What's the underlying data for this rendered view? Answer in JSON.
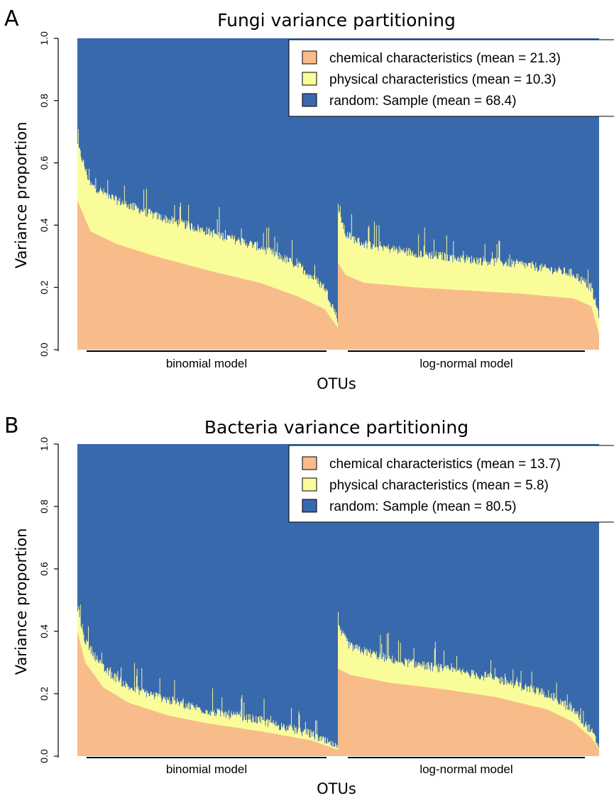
{
  "colors": {
    "chemical": "#f8bc8a",
    "physical": "#fafc9a",
    "random": "#3969ad"
  },
  "chart_data": [
    {
      "type": "bar",
      "panel": "A",
      "title": "Fungi variance partitioning",
      "xlabel": "OTUs",
      "ylabel": "Variance proportion",
      "ylim": [
        0,
        1
      ],
      "yticks": [
        "0.0",
        "0.2",
        "0.4",
        "0.6",
        "0.8",
        "1.0"
      ],
      "legend_position": "top-right",
      "stacked": true,
      "groups": [
        {
          "label": "binomial model",
          "bars": 390,
          "chemical": {
            "x": [
              0,
              0.05,
              0.15,
              0.3,
              0.5,
              0.7,
              0.85,
              0.95,
              1
            ],
            "y": [
              0.48,
              0.38,
              0.34,
              0.3,
              0.255,
              0.215,
              0.17,
              0.13,
              0.07
            ]
          },
          "total": {
            "x": [
              0,
              0.05,
              0.15,
              0.3,
              0.5,
              0.7,
              0.85,
              0.95,
              1
            ],
            "y": [
              0.66,
              0.53,
              0.48,
              0.43,
              0.38,
              0.33,
              0.27,
              0.2,
              0.1
            ]
          }
        },
        {
          "label": "log-normal model",
          "bars": 390,
          "chemical": {
            "x": [
              0,
              0.03,
              0.1,
              0.3,
              0.5,
              0.7,
              0.9,
              0.97,
              1
            ],
            "y": [
              0.28,
              0.24,
              0.215,
              0.2,
              0.19,
              0.18,
              0.165,
              0.14,
              0.05
            ]
          },
          "total": {
            "x": [
              0,
              0.03,
              0.1,
              0.3,
              0.5,
              0.7,
              0.9,
              0.97,
              1
            ],
            "y": [
              0.46,
              0.37,
              0.34,
              0.31,
              0.29,
              0.275,
              0.245,
              0.2,
              0.11
            ]
          }
        }
      ],
      "series": [
        {
          "name": "chemical characteristics (mean = 21.3)",
          "mean": 21.3,
          "color_key": "chemical"
        },
        {
          "name": "physical characteristics (mean = 10.3)",
          "mean": 10.3,
          "color_key": "physical"
        },
        {
          "name": "random: Sample (mean = 68.4)",
          "mean": 68.4,
          "color_key": "random"
        }
      ]
    },
    {
      "type": "bar",
      "panel": "B",
      "title": "Bacteria variance partitioning",
      "xlabel": "OTUs",
      "ylabel": "Variance proportion",
      "ylim": [
        0,
        1
      ],
      "yticks": [
        "0.0",
        "0.2",
        "0.4",
        "0.6",
        "0.8",
        "1.0"
      ],
      "legend_position": "top-right",
      "stacked": true,
      "groups": [
        {
          "label": "binomial model",
          "bars": 390,
          "chemical": {
            "x": [
              0,
              0.03,
              0.1,
              0.2,
              0.35,
              0.5,
              0.7,
              0.9,
              1
            ],
            "y": [
              0.4,
              0.3,
              0.22,
              0.17,
              0.13,
              0.105,
              0.08,
              0.05,
              0.02
            ]
          },
          "total": {
            "x": [
              0,
              0.03,
              0.1,
              0.2,
              0.35,
              0.5,
              0.7,
              0.9,
              1
            ],
            "y": [
              0.48,
              0.37,
              0.28,
              0.22,
              0.18,
              0.145,
              0.115,
              0.07,
              0.025
            ]
          }
        },
        {
          "label": "log-normal model",
          "bars": 390,
          "chemical": {
            "x": [
              0,
              0.05,
              0.2,
              0.4,
              0.6,
              0.8,
              0.9,
              0.97,
              1
            ],
            "y": [
              0.28,
              0.26,
              0.235,
              0.215,
              0.19,
              0.15,
              0.11,
              0.06,
              0.02
            ]
          },
          "total": {
            "x": [
              0,
              0.05,
              0.2,
              0.4,
              0.6,
              0.8,
              0.9,
              0.97,
              1
            ],
            "y": [
              0.41,
              0.35,
              0.31,
              0.28,
              0.25,
              0.2,
              0.15,
              0.08,
              0.03
            ]
          }
        }
      ],
      "series": [
        {
          "name": "chemical characteristics (mean = 13.7)",
          "mean": 13.7,
          "color_key": "chemical"
        },
        {
          "name": "physical characteristics (mean = 5.8)",
          "mean": 5.8,
          "color_key": "physical"
        },
        {
          "name": "random: Sample (mean = 80.5)",
          "mean": 80.5,
          "color_key": "random"
        }
      ]
    }
  ]
}
